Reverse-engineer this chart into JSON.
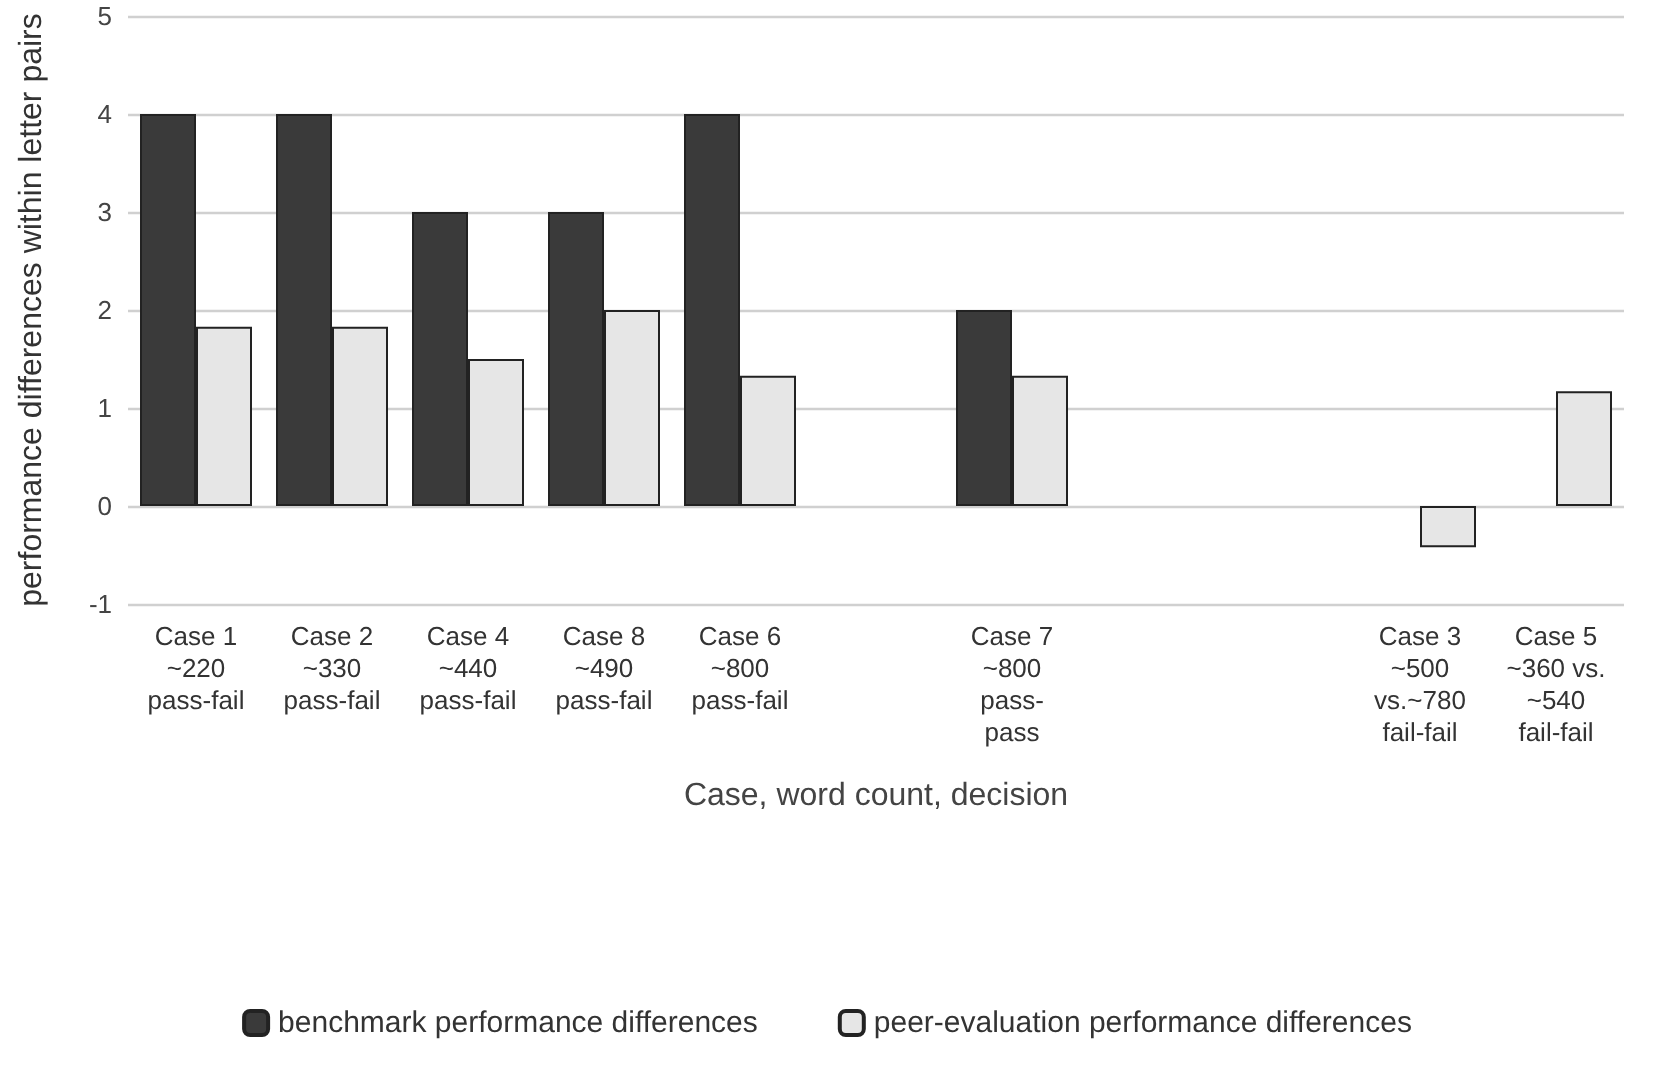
{
  "chart_data": {
    "type": "bar",
    "xlabel": "Case, word count, decision",
    "ylabel": "performance differences within letter pairs",
    "categories": [
      "Case 1\n~220\npass-fail",
      "Case 2\n~330\npass-fail",
      "Case 4\n~440\npass-fail",
      "Case 8\n~490\npass-fail",
      "Case 6\n~800\npass-fail",
      null,
      "Case 7\n~800\npass-\npass",
      null,
      null,
      "Case 3\n~500\nvs.~780\nfail-fail",
      "Case 5\n~360 vs.\n~540\nfail-fail"
    ],
    "series": [
      {
        "name": "benchmark performance differences",
        "color": "#3a3a3a",
        "values": [
          4,
          4,
          3,
          3,
          4,
          null,
          2,
          null,
          null,
          null,
          null
        ]
      },
      {
        "name": "peer-evaluation performance differences",
        "color": "#e6e6e6",
        "values": [
          1.83,
          1.83,
          1.5,
          2,
          1.33,
          null,
          1.33,
          null,
          null,
          -0.42,
          1.17
        ]
      }
    ],
    "ylim": [
      -1,
      5
    ],
    "yticks": [
      -1,
      0,
      1,
      2,
      3,
      4,
      5
    ],
    "grid": "y",
    "legend": "bottom"
  }
}
